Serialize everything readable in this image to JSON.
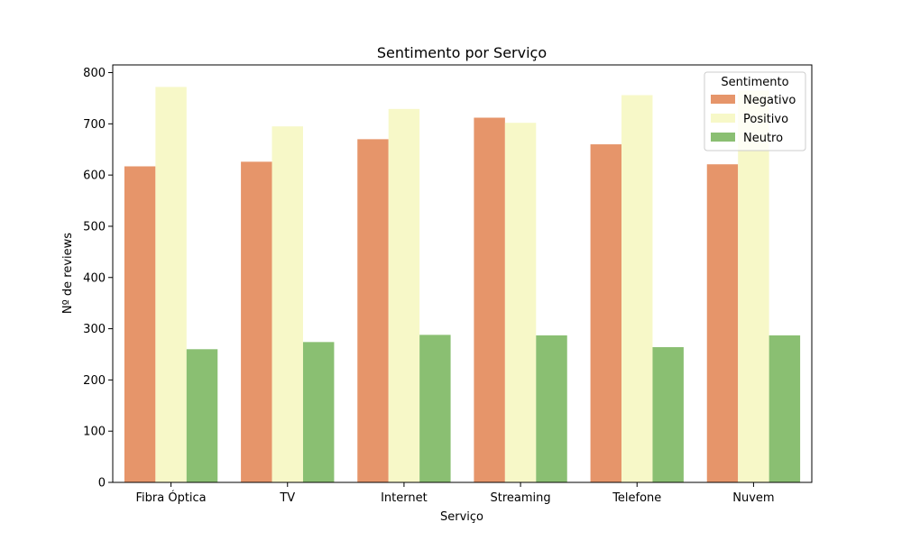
{
  "chart_data": {
    "type": "bar",
    "title": "Sentimento por Serviço",
    "xlabel": "Serviço",
    "ylabel": "Nº de reviews",
    "categories": [
      "Fibra Óptica",
      "TV",
      "Internet",
      "Streaming",
      "Telefone",
      "Nuvem"
    ],
    "series": [
      {
        "name": "Negativo",
        "color": "#e6956a",
        "values": [
          617,
          626,
          670,
          712,
          660,
          621
        ]
      },
      {
        "name": "Positivo",
        "color": "#f7f8c8",
        "values": [
          772,
          695,
          729,
          702,
          756,
          765
        ]
      },
      {
        "name": "Neutro",
        "color": "#8abf72",
        "values": [
          260,
          274,
          288,
          287,
          264,
          287
        ]
      }
    ],
    "ylim": [
      0,
      815
    ],
    "yticks": [
      0,
      100,
      200,
      300,
      400,
      500,
      600,
      700,
      800
    ],
    "grid": false,
    "legend": {
      "title": "Sentimento",
      "placement": "top-right"
    }
  }
}
